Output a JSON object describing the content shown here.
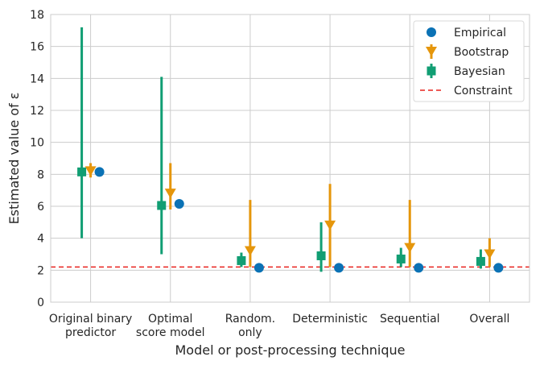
{
  "chart_data": {
    "type": "scatter",
    "xlabel": "Model or post-processing technique",
    "ylabel": "Estimated value of ε",
    "ylim": [
      0,
      18
    ],
    "yticks": [
      0,
      2,
      4,
      6,
      8,
      10,
      12,
      14,
      16,
      18
    ],
    "categories": [
      [
        "Original binary",
        "predictor"
      ],
      [
        "Optimal",
        "score model"
      ],
      [
        "Random.",
        "only"
      ],
      [
        "Deterministic"
      ],
      [
        "Sequential"
      ],
      [
        "Overall"
      ]
    ],
    "grid": true,
    "legend_position": "top-right",
    "constraint": {
      "name": "Constraint",
      "value": 2.2,
      "color": "#e8231f"
    },
    "series": [
      {
        "name": "Empirical",
        "marker": "circle",
        "color": "#0b72b5",
        "values": [
          8.15,
          6.15,
          2.15,
          2.15,
          2.15,
          2.15
        ]
      },
      {
        "name": "Bootstrap",
        "marker": "triangle-down",
        "color": "#e5960b",
        "values": [
          8.2,
          6.8,
          3.2,
          4.8,
          3.4,
          3.0
        ],
        "low": [
          7.8,
          5.8,
          2.2,
          2.2,
          2.2,
          2.2
        ],
        "high": [
          8.7,
          8.7,
          6.4,
          7.4,
          6.4,
          4.0
        ]
      },
      {
        "name": "Bayesian",
        "marker": "square",
        "color": "#119e73",
        "values": [
          8.15,
          6.05,
          2.6,
          2.9,
          2.7,
          2.55
        ],
        "low": [
          4.0,
          3.0,
          2.2,
          1.9,
          2.2,
          2.1
        ],
        "high": [
          17.2,
          14.1,
          3.1,
          5.0,
          3.4,
          3.3
        ]
      }
    ]
  }
}
